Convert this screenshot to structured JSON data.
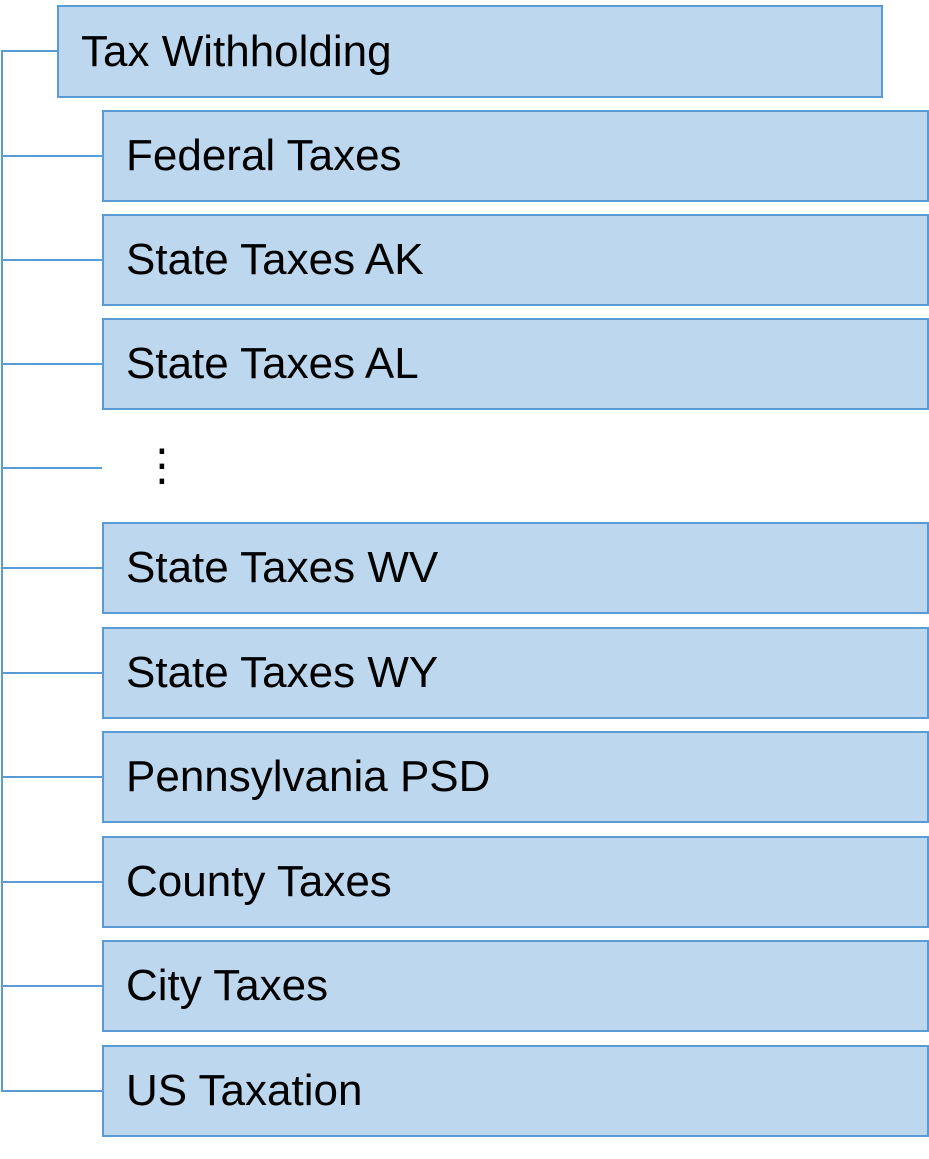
{
  "colors": {
    "fill": "#bdd7ee",
    "border": "#5b9bd5"
  },
  "root": {
    "label": "Tax Withholding"
  },
  "children": [
    {
      "label": "Federal Taxes"
    },
    {
      "label": "State Taxes AK"
    },
    {
      "label": "State Taxes AL"
    },
    {
      "label": "⋮",
      "ellipsis": true
    },
    {
      "label": "State Taxes WV"
    },
    {
      "label": "State Taxes WY"
    },
    {
      "label": "Pennsylvania PSD"
    },
    {
      "label": "County Taxes"
    },
    {
      "label": "City Taxes"
    },
    {
      "label": "US Taxation"
    }
  ]
}
